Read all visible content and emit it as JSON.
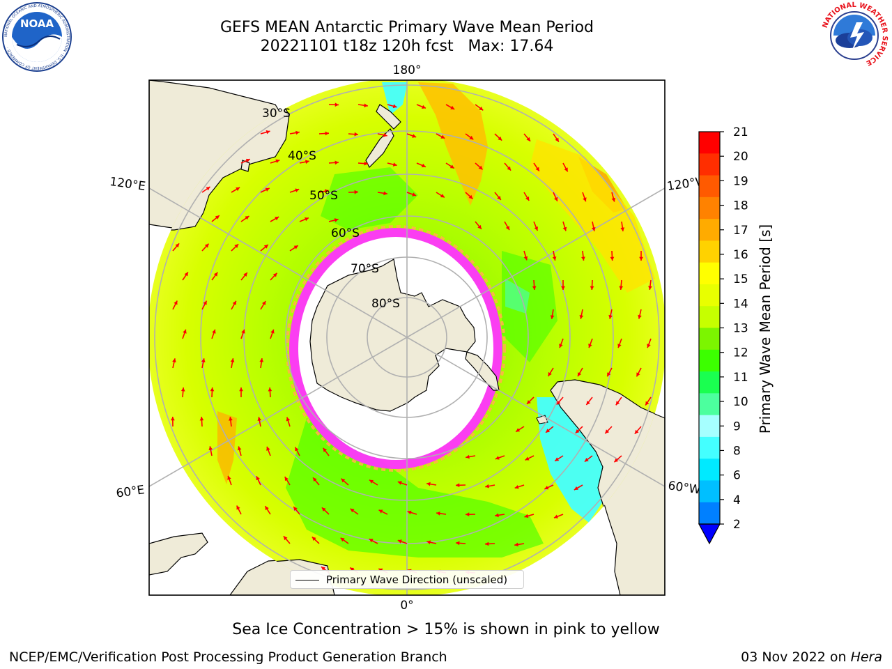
{
  "header": {
    "title_line1": "GEFS MEAN Antarctic Primary Wave Mean Period",
    "title_line2": "20221101 t18z 120h fcst   Max: 17.64"
  },
  "logos": {
    "noaa": "NOAA",
    "noaa_ring": "NATIONAL OCEANIC AND ATMOSPHERIC ADMINISTRATION · U.S. DEPARTMENT OF COMMERCE ·",
    "nws_ring": "NATIONAL WEATHER SERVICE"
  },
  "map": {
    "longitude_labels": {
      "top": "180°",
      "bottom": "0°",
      "upper_left": "120°E",
      "upper_right": "120°W",
      "lower_left": "60°E",
      "lower_right": "60°W"
    },
    "latitude_labels": [
      "30°S",
      "40°S",
      "50°S",
      "60°S",
      "70°S",
      "80°S"
    ],
    "legend": "Primary Wave Direction (unscaled)"
  },
  "colorbar": {
    "label": "Primary Wave Mean Period [s]",
    "ticks": [
      "21",
      "20",
      "19",
      "18",
      "17",
      "16",
      "15",
      "14",
      "13",
      "12",
      "11",
      "10",
      "9",
      "8",
      "6",
      "4",
      "2"
    ],
    "colors_top_to_bottom": [
      "#ff0000",
      "#ff2e00",
      "#ff5a00",
      "#ff8200",
      "#ffab00",
      "#ffd200",
      "#ffff00",
      "#e8ff00",
      "#c6ff00",
      "#7cf500",
      "#3cff00",
      "#1aff50",
      "#4cff9e",
      "#a6ffff",
      "#44ffff",
      "#00eaff",
      "#00bfff",
      "#0080ff"
    ],
    "extend_color": "#0000ff"
  },
  "footer": {
    "note": "Sea Ice Concentration > 15% is shown in pink to yellow",
    "credit": "NCEP/EMC/Verification Post Processing Product Generation Branch",
    "date": "03 Nov 2022 on ",
    "machine": "Hera"
  },
  "colors": {
    "land": "#efebd8",
    "ice_edge": "#ff33ff",
    "arrow": "#ff0000"
  }
}
